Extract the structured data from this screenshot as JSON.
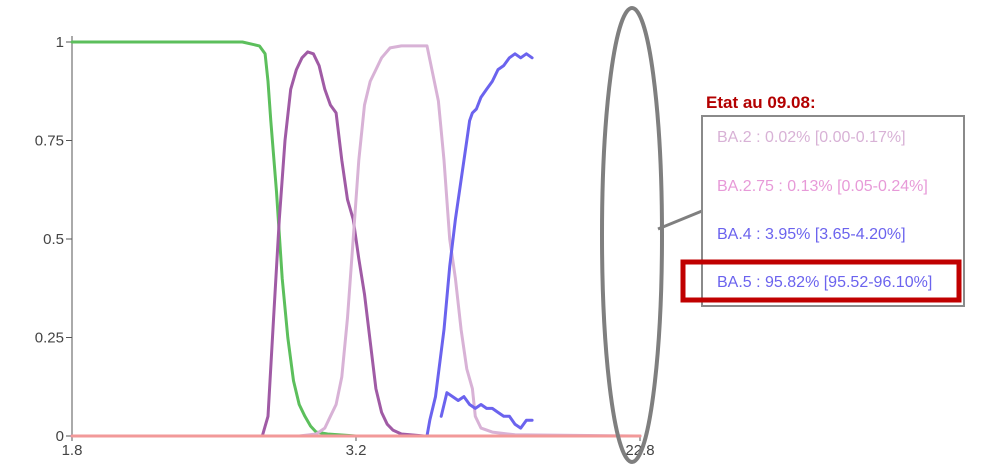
{
  "chart_data": {
    "type": "line",
    "title": "",
    "xlabel": "",
    "ylabel": "",
    "x_ticks": [
      "1.8",
      "3.2",
      "22.8"
    ],
    "y_ticks": [
      "0",
      "0.25",
      "0.5",
      "0.75",
      "1"
    ],
    "ylim": [
      0,
      1
    ],
    "grid": false,
    "series": [
      {
        "color": "#5cbf5c",
        "points": [
          [
            0,
            1
          ],
          [
            0.05,
            1
          ],
          [
            0.15,
            1
          ],
          [
            0.25,
            1
          ],
          [
            0.3,
            1
          ],
          [
            0.33,
            0.99
          ],
          [
            0.34,
            0.97
          ],
          [
            0.345,
            0.9
          ],
          [
            0.35,
            0.8
          ],
          [
            0.36,
            0.62
          ],
          [
            0.37,
            0.4
          ],
          [
            0.38,
            0.25
          ],
          [
            0.39,
            0.14
          ],
          [
            0.4,
            0.08
          ],
          [
            0.41,
            0.05
          ],
          [
            0.42,
            0.025
          ],
          [
            0.43,
            0.01
          ],
          [
            0.45,
            0.005
          ],
          [
            0.5,
            0
          ],
          [
            1,
            0
          ]
        ]
      },
      {
        "color": "#a05ba5",
        "points": [
          [
            0,
            0
          ],
          [
            0.3,
            0
          ],
          [
            0.335,
            0
          ],
          [
            0.345,
            0.05
          ],
          [
            0.355,
            0.3
          ],
          [
            0.365,
            0.55
          ],
          [
            0.375,
            0.75
          ],
          [
            0.385,
            0.88
          ],
          [
            0.395,
            0.93
          ],
          [
            0.405,
            0.96
          ],
          [
            0.415,
            0.975
          ],
          [
            0.425,
            0.97
          ],
          [
            0.435,
            0.94
          ],
          [
            0.445,
            0.88
          ],
          [
            0.455,
            0.84
          ],
          [
            0.465,
            0.82
          ],
          [
            0.475,
            0.7
          ],
          [
            0.485,
            0.6
          ],
          [
            0.495,
            0.55
          ],
          [
            0.505,
            0.45
          ],
          [
            0.515,
            0.36
          ],
          [
            0.525,
            0.24
          ],
          [
            0.535,
            0.12
          ],
          [
            0.545,
            0.06
          ],
          [
            0.555,
            0.03
          ],
          [
            0.565,
            0.015
          ],
          [
            0.58,
            0.005
          ],
          [
            0.62,
            0
          ],
          [
            1,
            0
          ]
        ]
      },
      {
        "color": "#d8b2d6",
        "points": [
          [
            0,
            0
          ],
          [
            0.4,
            0
          ],
          [
            0.43,
            0.005
          ],
          [
            0.445,
            0.02
          ],
          [
            0.455,
            0.05
          ],
          [
            0.465,
            0.08
          ],
          [
            0.475,
            0.15
          ],
          [
            0.485,
            0.3
          ],
          [
            0.495,
            0.5
          ],
          [
            0.505,
            0.7
          ],
          [
            0.515,
            0.84
          ],
          [
            0.525,
            0.9
          ],
          [
            0.535,
            0.93
          ],
          [
            0.545,
            0.96
          ],
          [
            0.56,
            0.985
          ],
          [
            0.58,
            0.99
          ],
          [
            0.61,
            0.99
          ],
          [
            0.625,
            0.99
          ],
          [
            0.635,
            0.92
          ],
          [
            0.645,
            0.85
          ],
          [
            0.655,
            0.7
          ],
          [
            0.665,
            0.5
          ],
          [
            0.675,
            0.4
          ],
          [
            0.685,
            0.27
          ],
          [
            0.695,
            0.17
          ],
          [
            0.705,
            0.12
          ],
          [
            0.71,
            0.05
          ],
          [
            0.72,
            0.02
          ],
          [
            0.74,
            0.01
          ],
          [
            0.78,
            0.003
          ],
          [
            1,
            0
          ]
        ]
      },
      {
        "color": "#6b63ee",
        "points": [
          [
            0,
            0
          ],
          [
            0.6,
            0
          ],
          [
            0.625,
            0
          ],
          [
            0.63,
            0.04
          ],
          [
            0.64,
            0.1
          ],
          [
            0.655,
            0.27
          ],
          [
            0.665,
            0.43
          ],
          [
            0.675,
            0.55
          ],
          [
            0.685,
            0.65
          ],
          [
            0.695,
            0.75
          ],
          [
            0.7,
            0.8
          ],
          [
            0.705,
            0.82
          ],
          [
            0.712,
            0.83
          ],
          [
            0.72,
            0.86
          ],
          [
            0.73,
            0.88
          ],
          [
            0.74,
            0.9
          ],
          [
            0.75,
            0.93
          ],
          [
            0.76,
            0.94
          ],
          [
            0.77,
            0.96
          ],
          [
            0.78,
            0.97
          ],
          [
            0.79,
            0.96
          ],
          [
            0.8,
            0.97
          ],
          [
            0.81,
            0.96
          ]
        ]
      },
      {
        "color": "#6b63ee",
        "points": [
          [
            0.65,
            0.05
          ],
          [
            0.66,
            0.11
          ],
          [
            0.67,
            0.1
          ],
          [
            0.68,
            0.09
          ],
          [
            0.69,
            0.1
          ],
          [
            0.7,
            0.08
          ],
          [
            0.71,
            0.07
          ],
          [
            0.72,
            0.08
          ],
          [
            0.73,
            0.07
          ],
          [
            0.74,
            0.07
          ],
          [
            0.75,
            0.06
          ],
          [
            0.76,
            0.05
          ],
          [
            0.77,
            0.05
          ],
          [
            0.78,
            0.03
          ],
          [
            0.79,
            0.02
          ],
          [
            0.8,
            0.04
          ],
          [
            0.81,
            0.04
          ]
        ]
      },
      {
        "color": "#f29999",
        "points": [
          [
            0,
            0
          ],
          [
            1,
            0
          ]
        ]
      }
    ],
    "legend": {
      "title": "Etat au 09.08:",
      "title_color": "#b30000",
      "entries": [
        {
          "label": "BA.2 : 0.02% [0.00-0.17%]",
          "color": "#d8b2d6"
        },
        {
          "label": "BA.2.75 : 0.13% [0.05-0.24%]",
          "color": "#e79ad8"
        },
        {
          "label": "BA.4 : 3.95% [3.65-4.20%]",
          "color": "#6b63ee"
        },
        {
          "label": "BA.5 : 95.82% [95.52-96.10%]",
          "color": "#6b63ee"
        }
      ],
      "highlighted_entry": "BA.5 : 95.82% [95.52-96.10%]",
      "highlight_color": "#c00000",
      "box_border_color": "#8a8a8a"
    }
  }
}
